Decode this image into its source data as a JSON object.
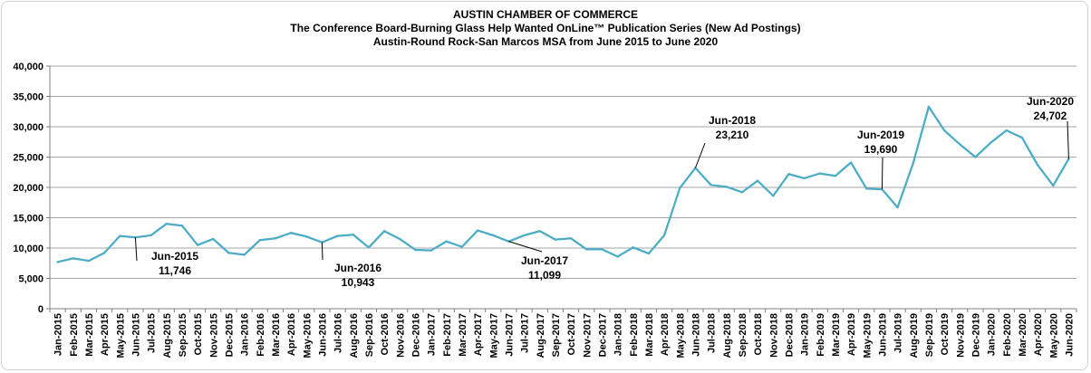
{
  "chart_data": {
    "type": "line",
    "title": "AUSTIN CHAMBER  OF COMMERCE",
    "subtitle": "The Conference Board-Burning  Glass  Help Wanted OnLine™ Publication Series (New Ad Postings)",
    "subtitle2": "Austin-Round  Rock-San Marcos MSA from June 2015 to June 2020",
    "ylim": [
      0,
      40000
    ],
    "yticks": [
      "0",
      "5,000",
      "10,000",
      "15,000",
      "20,000",
      "25,000",
      "30,000",
      "35,000",
      "40,000"
    ],
    "ytick_values": [
      0,
      5000,
      10000,
      15000,
      20000,
      25000,
      30000,
      35000,
      40000
    ],
    "grid": "horizontal",
    "line_color": "#4bacc6",
    "categories": [
      "Jan-2015",
      "Feb-2015",
      "Mar-2015",
      "Apr-2015",
      "May-2015",
      "Jun-2015",
      "Jul-2015",
      "Aug-2015",
      "Sep-2015",
      "Oct-2015",
      "Nov-2015",
      "Dec-2015",
      "Jan-2016",
      "Feb-2016",
      "Mar-2016",
      "Apr-2016",
      "May-2016",
      "Jun-2016",
      "Jul-2016",
      "Aug-2016",
      "Sep-2016",
      "Oct-2016",
      "Nov-2016",
      "Dec-2016",
      "Jan-2017",
      "Feb-2017",
      "Mar-2017",
      "Apr-2017",
      "May-2017",
      "Jun-2017",
      "Jul-2017",
      "Aug-2017",
      "Sep-2017",
      "Oct-2017",
      "Nov-2017",
      "Dec-2017",
      "Jan-2018",
      "Feb-2018",
      "Mar-2018",
      "Apr-2018",
      "May-2018",
      "Jun-2018",
      "Jul-2018",
      "Aug-2018",
      "Sep-2018",
      "Oct-2018",
      "Nov-2018",
      "Dec-2018",
      "Jan-2019",
      "Feb-2019",
      "Mar-2019",
      "Apr-2019",
      "May-2019",
      "Jun-2019",
      "Jul-2019",
      "Aug-2019",
      "Sep-2019",
      "Oct-2019",
      "Nov-2019",
      "Dec-2019",
      "Jan-2020",
      "Feb-2020",
      "Mar-2020",
      "Apr-2020",
      "May-2020",
      "Jun-2020"
    ],
    "values": [
      7700,
      8300,
      7900,
      9200,
      12000,
      11746,
      12100,
      14000,
      13700,
      10500,
      11500,
      9200,
      8900,
      11300,
      11600,
      12500,
      11900,
      10943,
      12000,
      12200,
      10100,
      12800,
      11500,
      9700,
      9600,
      11100,
      10200,
      12900,
      12100,
      11099,
      12100,
      12800,
      11400,
      11600,
      9800,
      9800,
      8600,
      10100,
      9100,
      12100,
      19900,
      23210,
      20400,
      20100,
      19200,
      21100,
      18600,
      22200,
      21500,
      22300,
      21900,
      24100,
      19800,
      19690,
      16700,
      24000,
      33300,
      29400,
      27100,
      25000,
      27400,
      29400,
      28200,
      23700,
      20300,
      24702
    ],
    "annotations": [
      {
        "category": "Jun-2015",
        "label": "Jun-2015",
        "value_label": "11,746"
      },
      {
        "category": "Jun-2016",
        "label": "Jun-2016",
        "value_label": "10,943"
      },
      {
        "category": "Jun-2017",
        "label": "Jun-2017",
        "value_label": "11,099"
      },
      {
        "category": "Jun-2018",
        "label": "Jun-2018",
        "value_label": "23,210"
      },
      {
        "category": "Jun-2019",
        "label": "Jun-2019",
        "value_label": "19,690"
      },
      {
        "category": "Jun-2020",
        "label": "Jun-2020",
        "value_label": "24,702"
      }
    ]
  }
}
